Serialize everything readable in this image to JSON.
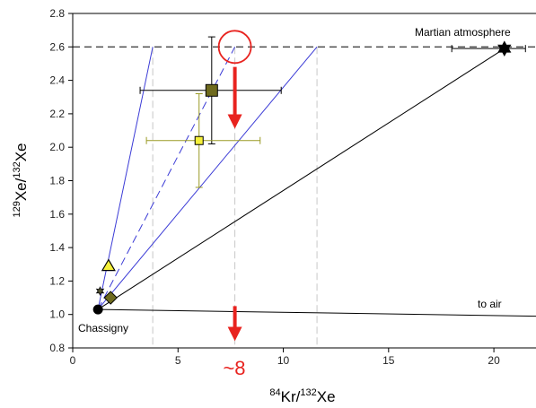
{
  "chart_data": {
    "type": "scatter",
    "title": "",
    "xlabel": {
      "base": "Kr/",
      "sup1": "84",
      "sup2": "132",
      "tail": "Xe"
    },
    "ylabel": {
      "sup1": "129",
      "mid": "Xe/",
      "sup2": "132",
      "tail": "Xe"
    },
    "xlim": [
      0,
      22
    ],
    "ylim": [
      0.8,
      2.8
    ],
    "xticks": [
      0,
      5,
      10,
      15,
      20
    ],
    "yticks": [
      0.8,
      1.0,
      1.2,
      1.4,
      1.6,
      1.8,
      2.0,
      2.2,
      2.4,
      2.6,
      2.8
    ],
    "reference_line": {
      "y": 2.6,
      "style": "dashed",
      "color": "#000000"
    },
    "vertical_guides": [
      {
        "x": 3.8,
        "y_range": [
          0.8,
          2.6
        ]
      },
      {
        "x": 7.7,
        "y_range": [
          0.8,
          2.6
        ]
      },
      {
        "x": 11.6,
        "y_range": [
          0.8,
          2.6
        ]
      }
    ],
    "lines": [
      {
        "name": "mixing-to-mars",
        "from": [
          1.2,
          1.03
        ],
        "to": [
          20.5,
          2.59
        ],
        "color": "#000000",
        "style": "solid"
      },
      {
        "name": "to-air",
        "from": [
          1.2,
          1.03
        ],
        "to": [
          22,
          0.99
        ],
        "color": "#000000",
        "style": "solid"
      },
      {
        "name": "blue-1",
        "from": [
          1.2,
          1.03
        ],
        "to": [
          3.8,
          2.6
        ],
        "color": "#3b3bd6",
        "style": "solid"
      },
      {
        "name": "blue-2",
        "from": [
          1.2,
          1.03
        ],
        "to": [
          7.7,
          2.6
        ],
        "color": "#3b3bd6",
        "style": "dashed"
      },
      {
        "name": "blue-3",
        "from": [
          1.2,
          1.03
        ],
        "to": [
          11.6,
          2.6
        ],
        "color": "#3b3bd6",
        "style": "solid"
      }
    ],
    "points": [
      {
        "name": "chassigny",
        "x": 1.2,
        "y": 1.03,
        "marker": "circle",
        "color": "#000000"
      },
      {
        "name": "small-star",
        "x": 1.3,
        "y": 1.14,
        "marker": "star",
        "color": "#555533"
      },
      {
        "name": "triangle",
        "x": 1.7,
        "y": 1.29,
        "marker": "triangle",
        "color": "#f5f03a"
      },
      {
        "name": "diamond",
        "x": 1.8,
        "y": 1.1,
        "marker": "diamond",
        "color": "#6e6a1e"
      },
      {
        "name": "square-large",
        "x": 6.6,
        "y": 2.34,
        "marker": "square",
        "color": "#6e6a1e",
        "xerr": [
          3.2,
          9.9
        ],
        "yerr": [
          2.02,
          2.66
        ],
        "errcolor": "#000000"
      },
      {
        "name": "square-small",
        "x": 6.0,
        "y": 2.04,
        "marker": "square",
        "color": "#f5f03a",
        "xerr": [
          3.5,
          8.9
        ],
        "yerr": [
          1.76,
          2.32
        ],
        "errcolor": "#9a9a24"
      },
      {
        "name": "mars-atmosphere",
        "x": 20.5,
        "y": 2.59,
        "marker": "star",
        "color": "#000000",
        "xerr": [
          18.0,
          21.5
        ],
        "errcolor": "#000000"
      }
    ],
    "annotations": {
      "mars": "Martian atmosphere",
      "air": "to air",
      "chassigny": "Chassigny",
      "approx": "~8"
    },
    "highlight": {
      "circle_center": [
        7.7,
        2.6
      ],
      "color": "#e8231f"
    },
    "arrows": [
      {
        "from": [
          7.7,
          2.48
        ],
        "to": [
          7.7,
          2.1
        ],
        "color": "#e8231f"
      },
      {
        "from": [
          7.7,
          1.05
        ],
        "to": [
          7.7,
          0.83
        ],
        "color": "#e8231f"
      }
    ]
  }
}
